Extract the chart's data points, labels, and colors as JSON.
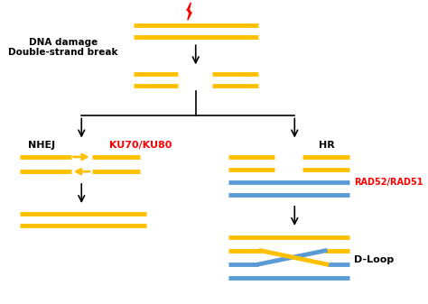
{
  "background_color": "#ffffff",
  "gold": "#FFC000",
  "blue": "#5B9BD5",
  "red": "#FF0000",
  "black": "#000000",
  "label_nhej": "NHEJ",
  "label_ku": "KU70/KU80",
  "label_hr": "HR",
  "label_rad": "RAD52/RAD51",
  "label_dloop": "D-Loop",
  "label_dna_damage": "DNA damage\nDouble-strand break",
  "lw": 3.5
}
